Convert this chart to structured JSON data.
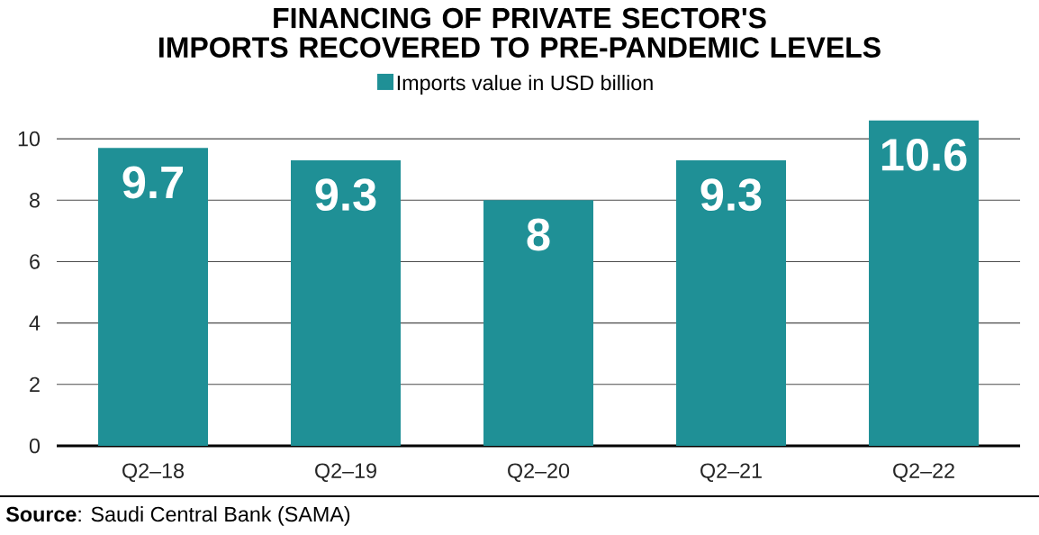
{
  "chart_data": {
    "type": "bar",
    "title": "FINANCING OF PRIVATE SECTOR'S IMPORTS RECOVERED TO PRE-PANDEMIC LEVELS",
    "categories": [
      "Q2–18",
      "Q2–19",
      "Q2–20",
      "Q2–21",
      "Q2–22"
    ],
    "series": [
      {
        "name": "Imports value in USD billion",
        "color": "#1f9096",
        "values": [
          9.7,
          9.3,
          8,
          9.3,
          10.6
        ]
      }
    ],
    "ylim": [
      0,
      10.6
    ],
    "yticks": [
      0,
      2,
      4,
      6,
      8,
      10
    ],
    "grid": "y",
    "legend": "top",
    "data_labels": true,
    "annotations": [
      "**Source**: Saudi Central Bank (SAMA)"
    ]
  }
}
